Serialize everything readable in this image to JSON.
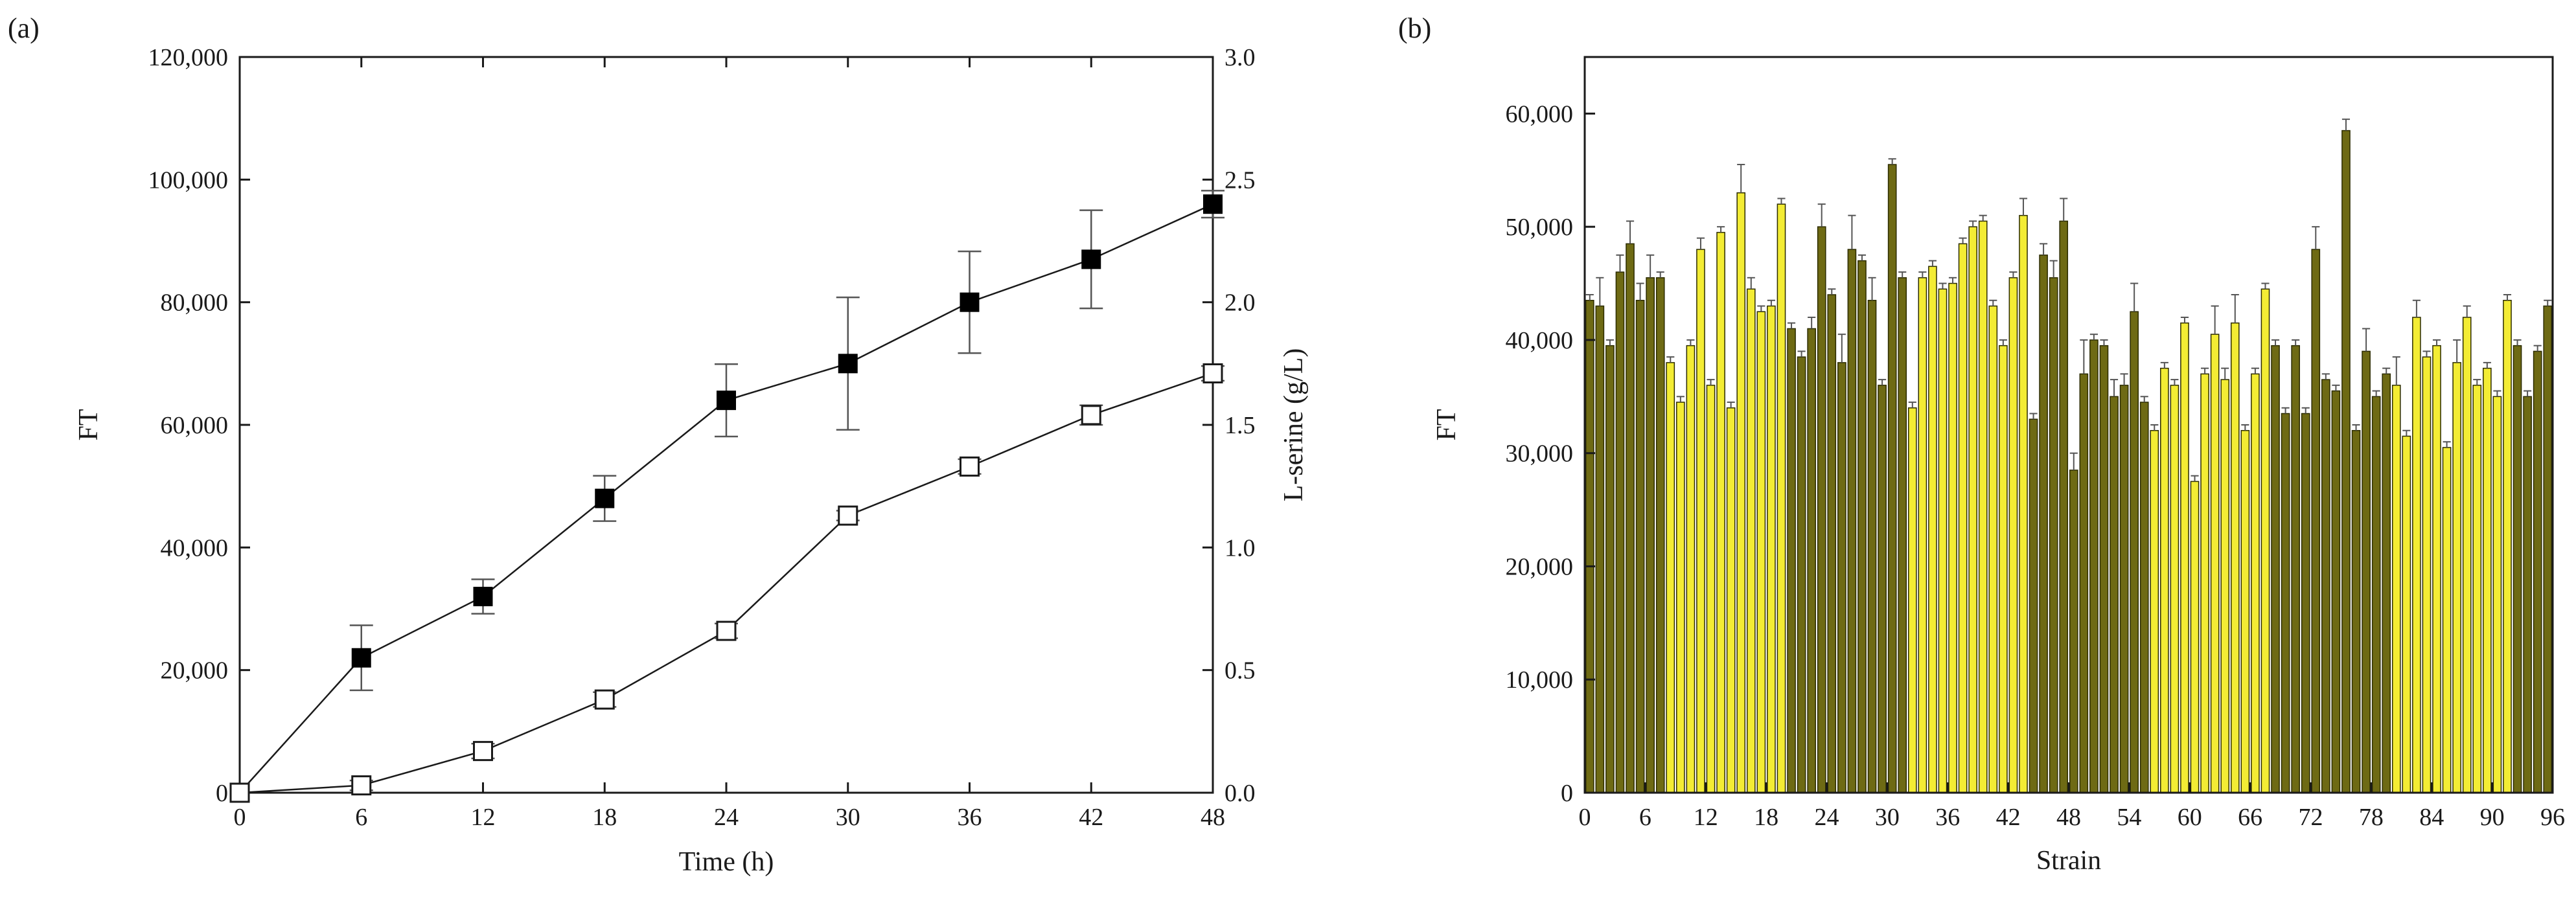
{
  "figure": {
    "panel_a_label": "(a)",
    "panel_b_label": "(b)"
  },
  "colors": {
    "axis": "#1a1a1a",
    "bar_yellow": "#f3ec34",
    "bar_olive": "#6e6a14",
    "bar_edge": "#2b2b00",
    "marker_filled": "#000000",
    "marker_open_fill": "#ffffff",
    "errorbar": "#555555"
  },
  "chart_data": [
    {
      "id": "a",
      "type": "line",
      "title": "",
      "xlabel": "Time (h)",
      "ylabel": "FT",
      "y2label": "L-serine (g/L)",
      "xlim": [
        0,
        48
      ],
      "ylim": [
        0,
        120000
      ],
      "y2lim": [
        0,
        3.0
      ],
      "x_ticks": [
        0,
        6,
        12,
        18,
        24,
        30,
        36,
        42,
        48
      ],
      "x_tick_labels": [
        "0",
        "6",
        "12",
        "18",
        "24",
        "30",
        "36",
        "42",
        "48"
      ],
      "y_ticks": [
        0,
        20000,
        40000,
        60000,
        80000,
        100000,
        120000
      ],
      "y_tick_labels": [
        "0",
        "20,000",
        "40,000",
        "60,000",
        "80,000",
        "100,000",
        "120,000"
      ],
      "y2_ticks": [
        0,
        0.5,
        1.0,
        1.5,
        2.0,
        2.5,
        3.0
      ],
      "y2_tick_labels": [
        "0.0",
        "0.5",
        "1.0",
        "1.5",
        "2.0",
        "2.5",
        "3.0"
      ],
      "series": [
        {
          "name": "FT",
          "axis": "left",
          "marker": "filled-square",
          "x": [
            0,
            6,
            12,
            18,
            24,
            30,
            36,
            42,
            48
          ],
          "values": [
            0,
            22000,
            32000,
            48000,
            64000,
            70000,
            80000,
            87000,
            96000
          ],
          "errors": [
            0,
            5300,
            2800,
            3700,
            5900,
            10800,
            8300,
            8000,
            2200
          ]
        },
        {
          "name": "L-serine",
          "axis": "right",
          "marker": "open-square",
          "x": [
            0,
            6,
            12,
            18,
            24,
            30,
            36,
            42,
            48
          ],
          "values": [
            0,
            0.03,
            0.17,
            0.38,
            0.66,
            1.13,
            1.33,
            1.54,
            1.71
          ],
          "errors": [
            0,
            0.02,
            0.03,
            0.03,
            0.03,
            0.02,
            0.03,
            0.04,
            0.03
          ]
        }
      ]
    },
    {
      "id": "b",
      "type": "bar",
      "title": "",
      "xlabel": "Strain",
      "ylabel": "FT",
      "xlim": [
        0,
        96
      ],
      "ylim": [
        0,
        65000
      ],
      "x_ticks": [
        0,
        6,
        12,
        18,
        24,
        30,
        36,
        42,
        48,
        54,
        60,
        66,
        72,
        78,
        84,
        90,
        96
      ],
      "x_tick_labels": [
        "0",
        "6",
        "12",
        "18",
        "24",
        "30",
        "36",
        "42",
        "48",
        "54",
        "60",
        "66",
        "72",
        "78",
        "84",
        "90",
        "96"
      ],
      "y_ticks": [
        0,
        10000,
        20000,
        30000,
        40000,
        50000,
        60000
      ],
      "y_tick_labels": [
        "0",
        "10,000",
        "20,000",
        "30,000",
        "40,000",
        "50,000",
        "60,000"
      ],
      "categories": [
        1,
        2,
        3,
        4,
        5,
        6,
        7,
        8,
        9,
        10,
        11,
        12,
        13,
        14,
        15,
        16,
        17,
        18,
        19,
        20,
        21,
        22,
        23,
        24,
        25,
        26,
        27,
        28,
        29,
        30,
        31,
        32,
        33,
        34,
        35,
        36,
        37,
        38,
        39,
        40,
        41,
        42,
        43,
        44,
        45,
        46,
        47,
        48,
        49,
        50,
        51,
        52,
        53,
        54,
        55,
        56,
        57,
        58,
        59,
        60,
        61,
        62,
        63,
        64,
        65,
        66,
        67,
        68,
        69,
        70,
        71,
        72,
        73,
        74,
        75,
        76,
        77,
        78,
        79,
        80,
        81,
        82,
        83,
        84,
        85,
        86,
        87,
        88,
        89,
        90,
        91,
        92,
        93,
        94,
        95,
        96
      ],
      "values": [
        43500,
        43000,
        39500,
        46000,
        48500,
        43500,
        45500,
        45500,
        38000,
        34500,
        39500,
        48000,
        36000,
        49500,
        34000,
        53000,
        44500,
        42500,
        43000,
        52000,
        41000,
        38500,
        41000,
        50000,
        44000,
        38000,
        48000,
        47000,
        43500,
        36000,
        55500,
        45500,
        34000,
        45500,
        46500,
        44500,
        45000,
        48500,
        50000,
        50500,
        43000,
        39500,
        45500,
        51000,
        33000,
        47500,
        45500,
        50500,
        28500,
        37000,
        40000,
        39500,
        35000,
        36000,
        42500,
        34500,
        32000,
        37500,
        36000,
        41500,
        27500,
        37000,
        40500,
        36500,
        41500,
        32000,
        37000,
        44500,
        39500,
        33500,
        39500,
        33500,
        48000,
        36500,
        35500,
        58500,
        32000,
        39000,
        35000,
        37000,
        36000,
        31500,
        42000,
        38500,
        39500,
        30500,
        38000,
        42000,
        36000,
        37500,
        35000,
        43500,
        39500,
        35000,
        39000,
        43000
      ],
      "errors": [
        500,
        2500,
        500,
        1500,
        2000,
        1500,
        2000,
        500,
        500,
        500,
        500,
        1000,
        500,
        500,
        500,
        2500,
        1000,
        500,
        500,
        500,
        500,
        500,
        1000,
        2000,
        500,
        2500,
        3000,
        500,
        2000,
        500,
        500,
        500,
        500,
        500,
        500,
        500,
        500,
        500,
        500,
        500,
        500,
        500,
        500,
        1500,
        500,
        1000,
        1500,
        2000,
        1500,
        3000,
        500,
        500,
        1500,
        1000,
        2500,
        500,
        500,
        500,
        500,
        500,
        500,
        500,
        2500,
        1000,
        2500,
        500,
        500,
        500,
        500,
        500,
        500,
        500,
        2000,
        500,
        500,
        1000,
        500,
        2000,
        500,
        500,
        2500,
        500,
        1500,
        500,
        500,
        500,
        2000,
        1000,
        500,
        500,
        500,
        500,
        500,
        500,
        500,
        500
      ],
      "color_pattern": [
        "olive",
        "olive",
        "olive",
        "olive",
        "olive",
        "olive",
        "olive",
        "olive",
        "yellow",
        "yellow",
        "yellow",
        "yellow",
        "yellow",
        "yellow",
        "yellow",
        "yellow",
        "yellow",
        "yellow",
        "yellow",
        "yellow",
        "olive",
        "olive",
        "olive",
        "olive",
        "olive",
        "olive",
        "olive",
        "olive",
        "olive",
        "olive",
        "olive",
        "olive",
        "yellow",
        "yellow",
        "yellow",
        "yellow",
        "yellow",
        "yellow",
        "yellow",
        "yellow",
        "yellow",
        "yellow",
        "yellow",
        "yellow",
        "olive",
        "olive",
        "olive",
        "olive",
        "olive",
        "olive",
        "olive",
        "olive",
        "olive",
        "olive",
        "olive",
        "olive",
        "yellow",
        "yellow",
        "yellow",
        "yellow",
        "yellow",
        "yellow",
        "yellow",
        "yellow",
        "yellow",
        "yellow",
        "yellow",
        "yellow",
        "olive",
        "olive",
        "olive",
        "olive",
        "olive",
        "olive",
        "olive",
        "olive",
        "olive",
        "olive",
        "olive",
        "olive",
        "yellow",
        "yellow",
        "yellow",
        "yellow",
        "yellow",
        "yellow",
        "yellow",
        "yellow",
        "yellow",
        "yellow",
        "yellow",
        "yellow",
        "olive",
        "olive",
        "olive",
        "olive"
      ]
    }
  ]
}
